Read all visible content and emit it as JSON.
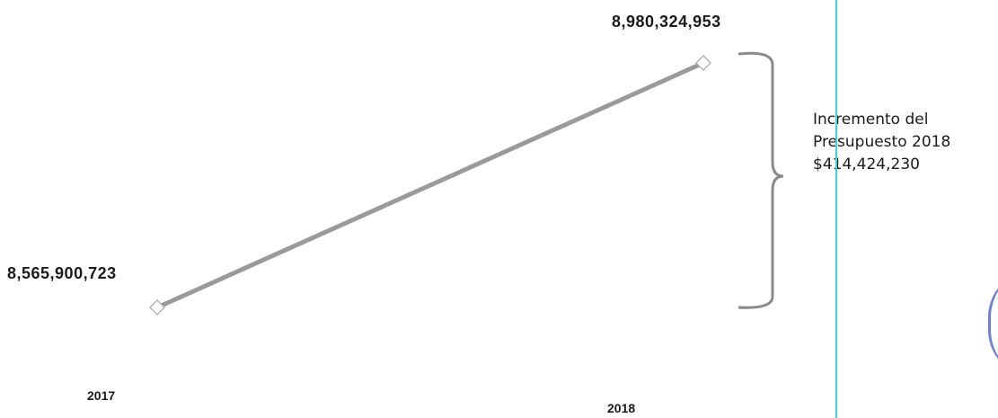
{
  "chart_data": {
    "type": "line",
    "categories": [
      "2017",
      "2018"
    ],
    "series": [
      {
        "values": [
          8565900723,
          8980324953
        ]
      }
    ],
    "data_labels": [
      "8,565,900,723",
      "8,980,324,953"
    ],
    "ylim": [
      8565900723,
      8980324953
    ],
    "grid": false,
    "line_color": "#9a9a9a",
    "marker": "diamond",
    "annotation": {
      "lines": [
        "Incremento del",
        "Presupuesto 2018",
        "$414,424,230"
      ],
      "bracket_color": "#8a8a8a"
    }
  },
  "colors": {
    "guide_line": "#3fd9d0",
    "edge_circle": "#6b7fd6"
  }
}
